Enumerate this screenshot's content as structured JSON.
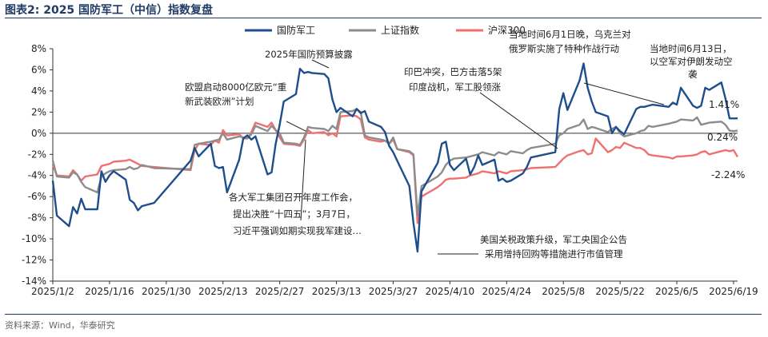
{
  "header": {
    "title": "图表2:  2025 国防军工（中信）指数复盘"
  },
  "footer": {
    "source": "资料来源：Wind，华泰研究"
  },
  "colors": {
    "defense": "#1f4e8c",
    "sse": "#8c8c8c",
    "csi300": "#f07070",
    "axis": "#333333"
  },
  "chart_data": {
    "type": "line",
    "title": "2025 国防军工（中信）指数复盘",
    "xlabel": "",
    "ylabel": "",
    "ylim": [
      -14,
      8
    ],
    "yticks": [
      -14,
      -12,
      -10,
      -8,
      -6,
      -4,
      -2,
      0,
      2,
      4,
      6,
      8
    ],
    "ytick_labels": [
      "-14%",
      "-12%",
      "-10%",
      "-8%",
      "-6%",
      "-4%",
      "-2%",
      "0%",
      "2%",
      "4%",
      "6%",
      "8%"
    ],
    "xtick_labels": [
      "2025/1/2",
      "2025/1/16",
      "2025/1/30",
      "2025/2/13",
      "2025/2/27",
      "2025/3/13",
      "2025/3/27",
      "2025/4/10",
      "2025/4/24",
      "2025/5/8",
      "2025/5/22",
      "2025/6/5",
      "2025/6/19"
    ],
    "grid": false,
    "legend_position": "top-right",
    "x": [
      "2025/1/2",
      "2025/1/3",
      "2025/1/6",
      "2025/1/7",
      "2025/1/8",
      "2025/1/9",
      "2025/1/10",
      "2025/1/13",
      "2025/1/14",
      "2025/1/15",
      "2025/1/16",
      "2025/1/17",
      "2025/1/20",
      "2025/1/21",
      "2025/1/22",
      "2025/1/23",
      "2025/1/24",
      "2025/1/27",
      "2025/2/5",
      "2025/2/6",
      "2025/2/7",
      "2025/2/10",
      "2025/2/11",
      "2025/2/12",
      "2025/2/13",
      "2025/2/14",
      "2025/2/17",
      "2025/2/18",
      "2025/2/19",
      "2025/2/20",
      "2025/2/21",
      "2025/2/24",
      "2025/2/25",
      "2025/2/26",
      "2025/2/27",
      "2025/2/28",
      "2025/3/3",
      "2025/3/4",
      "2025/3/5",
      "2025/3/6",
      "2025/3/7",
      "2025/3/10",
      "2025/3/11",
      "2025/3/12",
      "2025/3/13",
      "2025/3/14",
      "2025/3/17",
      "2025/3/18",
      "2025/3/19",
      "2025/3/20",
      "2025/3/21",
      "2025/3/24",
      "2025/3/25",
      "2025/3/26",
      "2025/3/27",
      "2025/3/28",
      "2025/3/31",
      "2025/4/1",
      "2025/4/2",
      "2025/4/3",
      "2025/4/7",
      "2025/4/8",
      "2025/4/9",
      "2025/4/10",
      "2025/4/11",
      "2025/4/14",
      "2025/4/15",
      "2025/4/16",
      "2025/4/17",
      "2025/4/18",
      "2025/4/21",
      "2025/4/22",
      "2025/4/23",
      "2025/4/24",
      "2025/4/25",
      "2025/4/28",
      "2025/4/29",
      "2025/4/30",
      "2025/5/6",
      "2025/5/7",
      "2025/5/8",
      "2025/5/9",
      "2025/5/12",
      "2025/5/13",
      "2025/5/14",
      "2025/5/15",
      "2025/5/16",
      "2025/5/19",
      "2025/5/20",
      "2025/5/21",
      "2025/5/22",
      "2025/5/23",
      "2025/5/26",
      "2025/5/27",
      "2025/5/28",
      "2025/5/29",
      "2025/5/30",
      "2025/6/3",
      "2025/6/4",
      "2025/6/5",
      "2025/6/6",
      "2025/6/9",
      "2025/6/10",
      "2025/6/11",
      "2025/6/12",
      "2025/6/13",
      "2025/6/16",
      "2025/6/17",
      "2025/6/18",
      "2025/6/19",
      "2025/6/20"
    ],
    "series": [
      {
        "name": "国防军工",
        "values": [
          -4.5,
          -7.8,
          -8.8,
          -7.0,
          -7.6,
          -6.2,
          -7.2,
          -7.2,
          -3.6,
          -4.6,
          -4.0,
          -3.6,
          -4.4,
          -6.3,
          -6.6,
          -7.3,
          -6.9,
          -6.6,
          -2.6,
          -1.4,
          -2.2,
          -1.0,
          -3.1,
          -3.3,
          -3.2,
          -5.6,
          -2.5,
          -0.5,
          -0.2,
          -0.6,
          -0.3,
          -3.9,
          -3.7,
          -1.0,
          0.8,
          3.0,
          3.7,
          6.1,
          5.7,
          5.8,
          5.7,
          5.6,
          5.2,
          3.2,
          2.0,
          2.4,
          1.6,
          2.3,
          1.9,
          2.1,
          1.1,
          0.6,
          0.1,
          -1.2,
          -1.8,
          -2.6,
          -5.0,
          -8.5,
          -11.2,
          -5.5,
          -2.8,
          -1.0,
          -0.8,
          -3.0,
          -3.5,
          -2.4,
          -3.9,
          -3.2,
          -2.1,
          -3.0,
          -2.5,
          -4.5,
          -4.3,
          -4.6,
          -4.5,
          -3.8,
          -3.2,
          -2.3,
          -1.8,
          2.3,
          3.8,
          2.2,
          5.0,
          6.6,
          4.3,
          3.0,
          2.0,
          1.6,
          0.0,
          0.6,
          0.2,
          -0.1,
          2.3,
          2.5,
          2.5,
          2.6,
          2.7,
          2.5,
          2.9,
          2.7,
          4.3,
          2.6,
          2.4,
          2.6,
          4.3,
          4.1,
          4.8,
          3.3,
          1.41,
          1.4,
          1.41
        ]
      },
      {
        "name": "上证指数",
        "values": [
          -2.6,
          -4.1,
          -4.2,
          -3.7,
          -3.9,
          -4.6,
          -5.1,
          -5.6,
          -4.1,
          -3.8,
          -3.6,
          -3.5,
          -3.4,
          -3.2,
          -3.4,
          -3.3,
          -3.0,
          -3.3,
          -3.4,
          -1.1,
          -1.0,
          -0.8,
          -0.7,
          -0.6,
          0.0,
          -0.6,
          -0.3,
          -0.4,
          -0.5,
          -0.1,
          0.7,
          0.2,
          0.7,
          0.3,
          0.0,
          -0.9,
          -1.0,
          -1.1,
          -0.4,
          0.6,
          0.5,
          0.4,
          0.2,
          0.7,
          0.4,
          2.0,
          2.1,
          2.3,
          2.0,
          -0.2,
          -0.4,
          -0.6,
          -0.7,
          -1.0,
          -0.4,
          -1.5,
          -1.7,
          -2.0,
          -7.8,
          -5.0,
          -4.1,
          -3.7,
          -3.0,
          -2.6,
          -2.4,
          -2.3,
          -2.2,
          -2.1,
          -2.0,
          -1.8,
          -2.1,
          -1.8,
          -1.9,
          -2.0,
          -1.7,
          -1.9,
          -1.6,
          -1.4,
          -1.0,
          -0.2,
          0.0,
          0.4,
          0.8,
          1.3,
          0.4,
          0.6,
          0.5,
          0.1,
          0.4,
          0.6,
          0.0,
          -0.3,
          0.0,
          0.2,
          0.3,
          0.7,
          0.6,
          0.9,
          1.0,
          1.1,
          1.3,
          1.2,
          1.5,
          0.8,
          0.9,
          1.0,
          1.1,
          0.8,
          0.24,
          0.2,
          0.24
        ]
      },
      {
        "name": "沪深300",
        "values": [
          -3.0,
          -4.0,
          -4.1,
          -3.5,
          -3.9,
          -4.5,
          -4.1,
          -3.9,
          -3.1,
          -3.0,
          -2.9,
          -2.7,
          -2.6,
          -2.5,
          -2.7,
          -2.9,
          -3.1,
          -3.2,
          -3.5,
          -1.6,
          -1.0,
          -1.1,
          -0.7,
          -0.9,
          0.3,
          -0.2,
          -0.1,
          -0.5,
          -0.5,
          0.1,
          1.0,
          0.6,
          1.0,
          0.3,
          -0.4,
          -1.0,
          -1.1,
          -1.2,
          -0.6,
          0.3,
          0.0,
          0.1,
          -0.2,
          0.0,
          -0.3,
          1.6,
          1.7,
          1.6,
          1.3,
          -0.4,
          -0.6,
          -0.8,
          -0.7,
          -1.0,
          -0.6,
          -1.5,
          -1.8,
          -2.1,
          -8.5,
          -6.0,
          -5.1,
          -4.8,
          -4.4,
          -4.3,
          -4.3,
          -4.2,
          -4.0,
          -3.9,
          -3.8,
          -3.6,
          -3.8,
          -3.6,
          -3.7,
          -3.8,
          -3.6,
          -3.5,
          -3.4,
          -3.3,
          -3.2,
          -2.8,
          -2.4,
          -2.1,
          -1.7,
          -1.6,
          -2.0,
          -1.9,
          -0.5,
          -1.8,
          -1.6,
          -1.3,
          -1.4,
          -0.9,
          -1.4,
          -1.4,
          -1.6,
          -2.0,
          -2.1,
          -2.3,
          -2.4,
          -2.2,
          -2.2,
          -2.1,
          -2.0,
          -1.8,
          -1.7,
          -2.0,
          -1.7,
          -1.6,
          -1.7,
          -1.6,
          -2.24
        ]
      }
    ],
    "end_labels": [
      "1.41%",
      "0.24%",
      "-2.24%"
    ],
    "annotations": [
      {
        "text": [
          "2025年国防预算披露"
        ]
      },
      {
        "text": [
          "欧盟启动8000亿欧元“重",
          "新武装欧洲”计划"
        ]
      },
      {
        "text": [
          "各大军工集团召开年度工作会，",
          "提出决胜“十四五”；3月7日，",
          "习近平强调如期实现我军建设…"
        ]
      },
      {
        "text": [
          "印巴冲突，巴方击落5架",
          "印度战机，军工股领涨"
        ]
      },
      {
        "text": [
          "当地时间6月1日晚，乌克兰对",
          "俄罗斯实施了特种作战行动"
        ]
      },
      {
        "text": [
          "当地时间6月13日，",
          "以空军对伊朗发动空",
          "袭"
        ]
      },
      {
        "text": [
          "美国关税政策升级，军工央国企公告",
          "采用增持回购等措施进行市值管理"
        ]
      }
    ]
  }
}
